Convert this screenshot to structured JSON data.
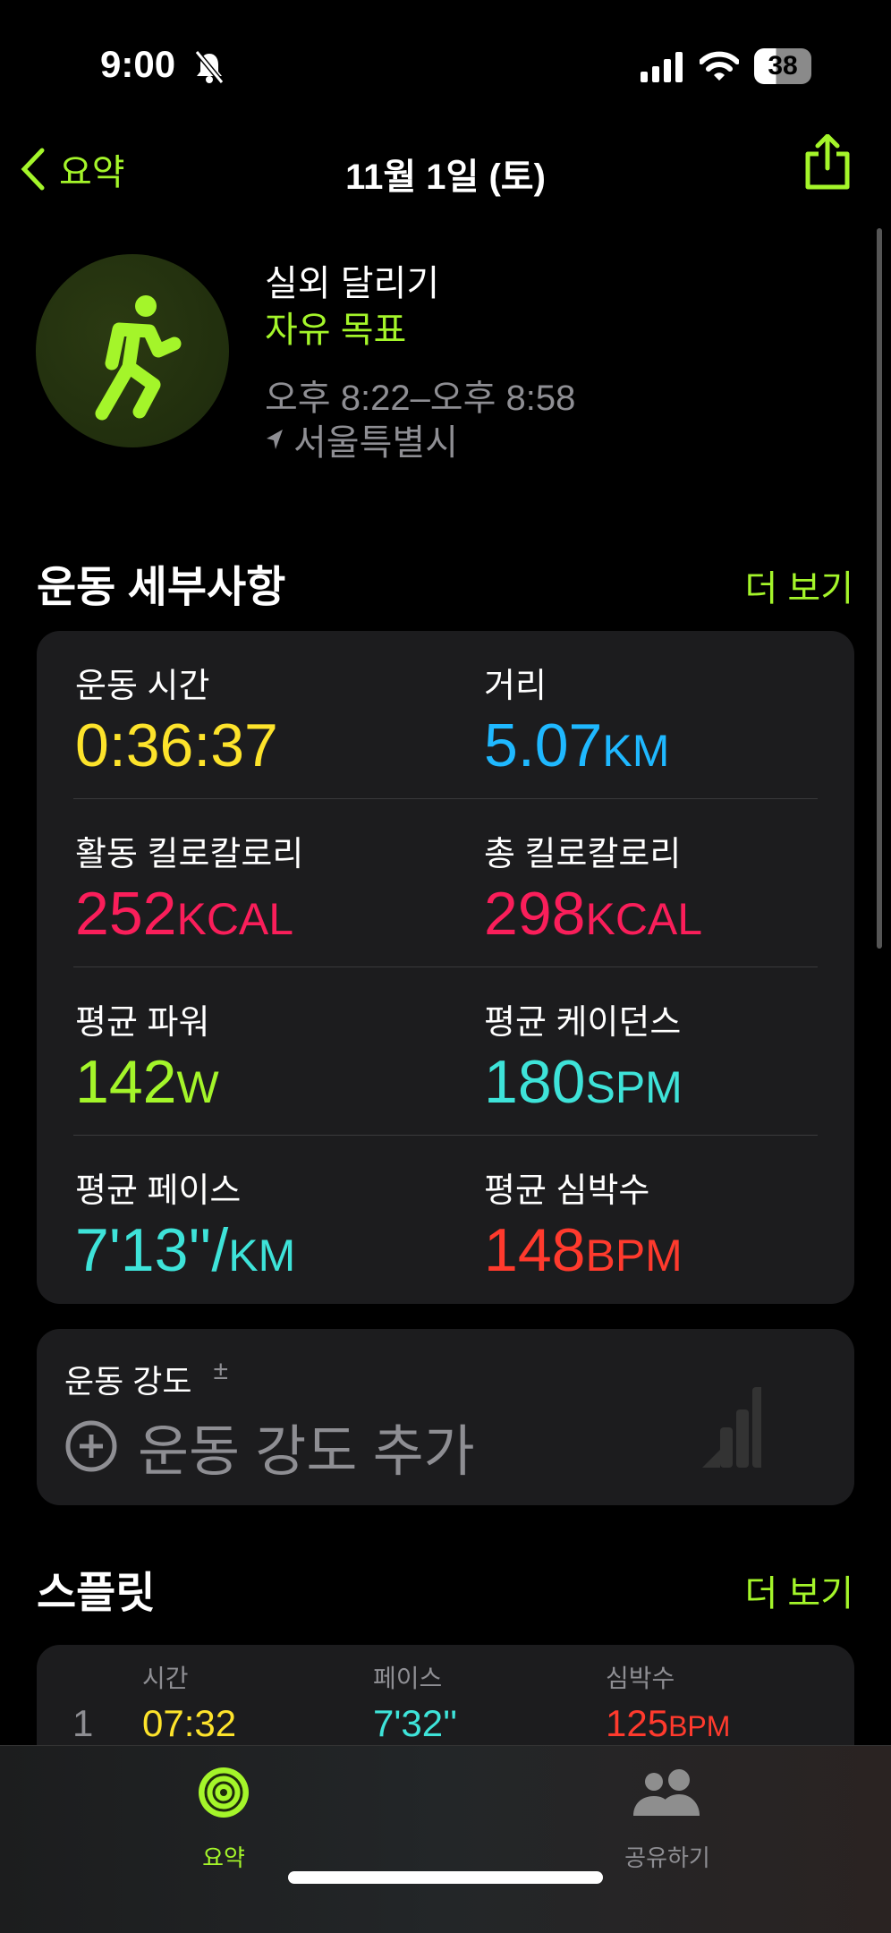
{
  "status": {
    "time": "9:00",
    "battery": "38",
    "icons": [
      "bell-slash-icon",
      "signal-icon",
      "wifi-icon",
      "battery-icon"
    ]
  },
  "nav": {
    "back": "요약",
    "title": "11월 1일 (토)",
    "share": "share-icon"
  },
  "workout": {
    "type": "실외 달리기",
    "goal": "자유 목표",
    "time_range": "오후 8:22–오후 8:58",
    "location": "서울특별시"
  },
  "details": {
    "title": "운동 세부사항",
    "more": "더 보기",
    "metrics": [
      {
        "label": "운동 시간",
        "value": "0:36:37",
        "unit": "",
        "color": "#fde32b"
      },
      {
        "label": "거리",
        "value": "5.07",
        "unit": "KM",
        "color": "#1fb8ff"
      },
      {
        "label": "활동 킬로칼로리",
        "value": "252",
        "unit": "KCAL",
        "color": "#fa1e5a"
      },
      {
        "label": "총 킬로칼로리",
        "value": "298",
        "unit": "KCAL",
        "color": "#fa1e5a"
      },
      {
        "label": "평균 파워",
        "value": "142",
        "unit": "W",
        "color": "#a4f52a"
      },
      {
        "label": "평균 케이던스",
        "value": "180",
        "unit": "SPM",
        "color": "#3ee3d9"
      },
      {
        "label": "평균 페이스",
        "value": "7'13''/",
        "unit": "KM",
        "color": "#3ee3d9"
      },
      {
        "label": "평균 심박수",
        "value": "148",
        "unit": "BPM",
        "color": "#ff3a2d"
      }
    ]
  },
  "intensity": {
    "label": "운동 강도",
    "plusminus": "±",
    "add": "운동 강도 추가"
  },
  "splits": {
    "title": "스플릿",
    "more": "더 보기",
    "headers": [
      "시간",
      "페이스",
      "심박수"
    ],
    "rows": [
      {
        "index": "1",
        "time": "07:32",
        "pace": "7'32''",
        "hr": "125",
        "hr_unit": "BPM"
      }
    ]
  },
  "tabs": [
    {
      "label": "요약",
      "active": true
    },
    {
      "label": "공유하기",
      "active": false
    }
  ],
  "accent": "#a4f52a"
}
